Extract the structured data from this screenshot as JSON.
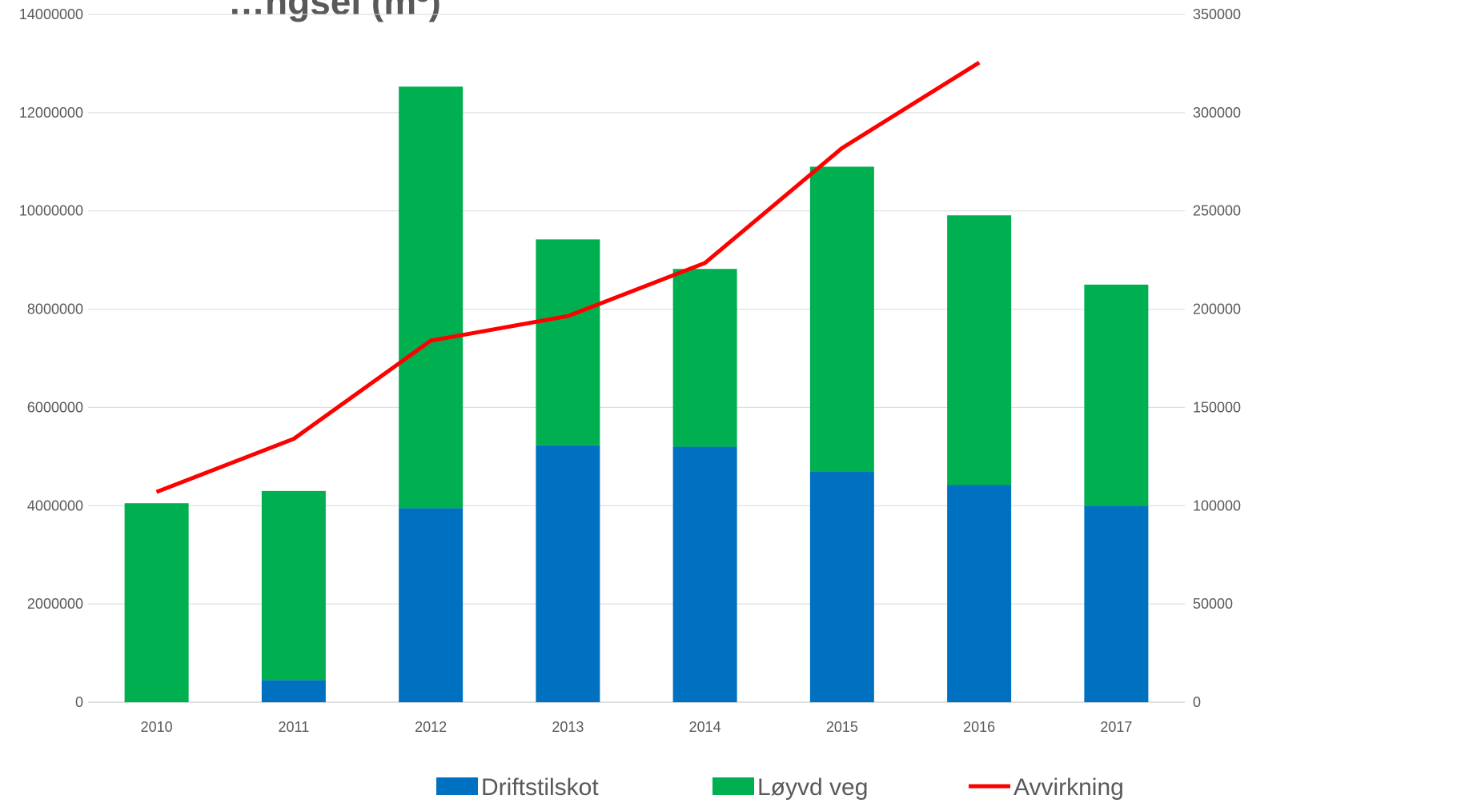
{
  "chart_data": {
    "type": "bar",
    "stacked": true,
    "title": "…ngsel (m³)",
    "categories": [
      "2010",
      "2011",
      "2012",
      "2013",
      "2014",
      "2015",
      "2016",
      "2017"
    ],
    "series": [
      {
        "name": "Driftstilskot",
        "axis": "left",
        "kind": "bar",
        "color": "#0070C0",
        "values": [
          0,
          450000,
          3950000,
          5230000,
          5200000,
          4700000,
          4420000,
          4000000
        ]
      },
      {
        "name": "Løyvd veg",
        "axis": "left",
        "kind": "bar",
        "color": "#00B050",
        "values": [
          4050000,
          3850000,
          8580000,
          4190000,
          3620000,
          6200000,
          5490000,
          4500000
        ]
      },
      {
        "name": "Avvirkning",
        "axis": "right",
        "kind": "line",
        "color": "#FF0000",
        "values": [
          107000,
          134000,
          184000,
          196500,
          223500,
          282000,
          325500,
          null
        ]
      }
    ],
    "y_left": {
      "min": 0,
      "max": 14000000,
      "ticks": [
        "0",
        "2000000",
        "4000000",
        "6000000",
        "8000000",
        "10000000",
        "12000000",
        "14000000"
      ]
    },
    "y_right": {
      "min": 0,
      "max": 350000,
      "ticks": [
        "0",
        "50000",
        "100000",
        "150000",
        "200000",
        "250000",
        "300000",
        "350000"
      ]
    },
    "grid": true,
    "legend_position": "bottom"
  }
}
